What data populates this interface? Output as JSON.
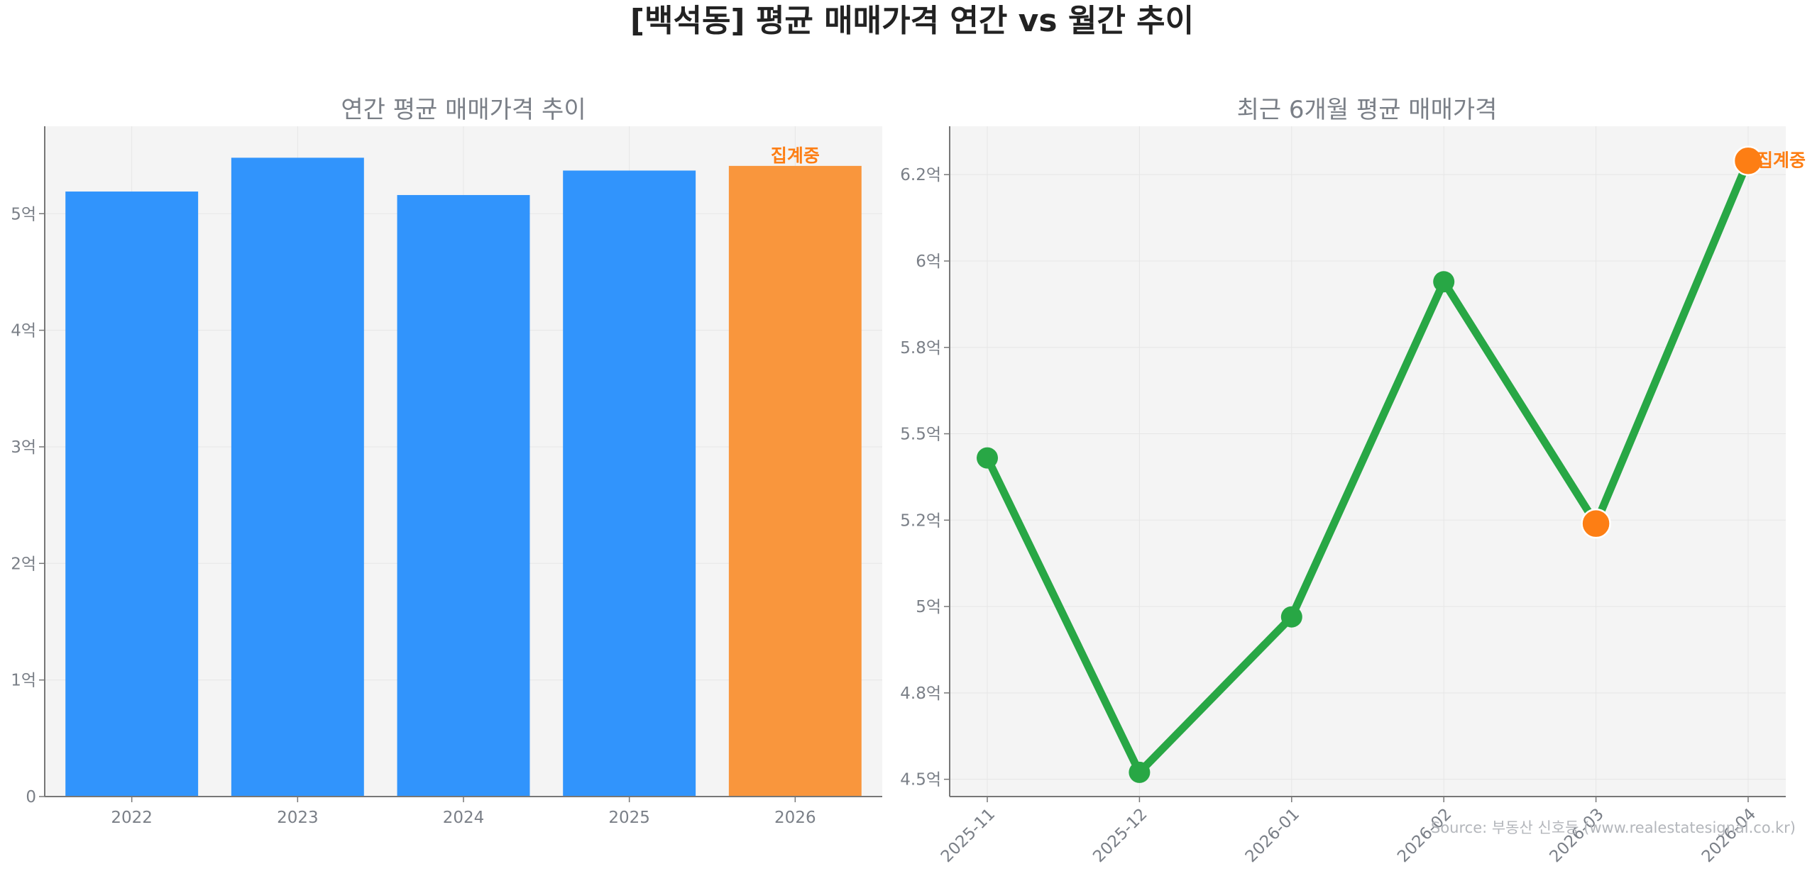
{
  "figure": {
    "title": "[백석동] 평균 매매가격 연간 vs 월간 추이",
    "source": "Source: 부동산 신호등 (www.realestatesignal.co.kr)"
  },
  "colors": {
    "bar_blue": "#3194fc",
    "bar_orange": "#f9963d",
    "line_green": "#28a745",
    "marker_orange": "#fd7e14",
    "annot_orange": "#fd7e14",
    "panel_bg": "#f4f4f4",
    "grid": "#e6e6e6",
    "axis": "#777777"
  },
  "chart_data": [
    {
      "type": "bar",
      "title": "연간 평균 매매가격 추이",
      "xlabel": "",
      "ylabel": "",
      "categories": [
        "2022",
        "2023",
        "2024",
        "2025",
        "2026"
      ],
      "values": [
        5.19,
        5.48,
        5.16,
        5.37,
        5.41
      ],
      "value_unit": "억",
      "ylim": [
        0,
        5.75
      ],
      "yticks": [
        0,
        1,
        2,
        3,
        4,
        5
      ],
      "ytick_labels": [
        "0",
        "1억",
        "2억",
        "3억",
        "4억",
        "5억"
      ],
      "highlight_index": 4,
      "annotation": {
        "category": "2026",
        "text": "집계중"
      },
      "grid": true
    },
    {
      "type": "line",
      "title": "최근 6개월 평균 매매가격",
      "xlabel": "",
      "ylabel": "",
      "x": [
        "2025-11",
        "2025-12",
        "2026-01",
        "2026-02",
        "2026-03",
        "2026-04"
      ],
      "values": [
        5.43,
        4.52,
        4.97,
        5.94,
        5.24,
        6.29
      ],
      "value_unit": "억",
      "ylim": [
        4.45,
        6.39
      ],
      "yticks": [
        4.5,
        4.75,
        5.0,
        5.25,
        5.5,
        5.75,
        6.0,
        6.25
      ],
      "ytick_labels": [
        "4.5억",
        "4.8억",
        "5억",
        "5.2억",
        "5.5억",
        "5.8억",
        "6억",
        "6.2억"
      ],
      "highlight_indices": [
        4,
        5
      ],
      "annotation": {
        "x": "2026-04",
        "text": "집계중"
      },
      "grid": true
    }
  ]
}
